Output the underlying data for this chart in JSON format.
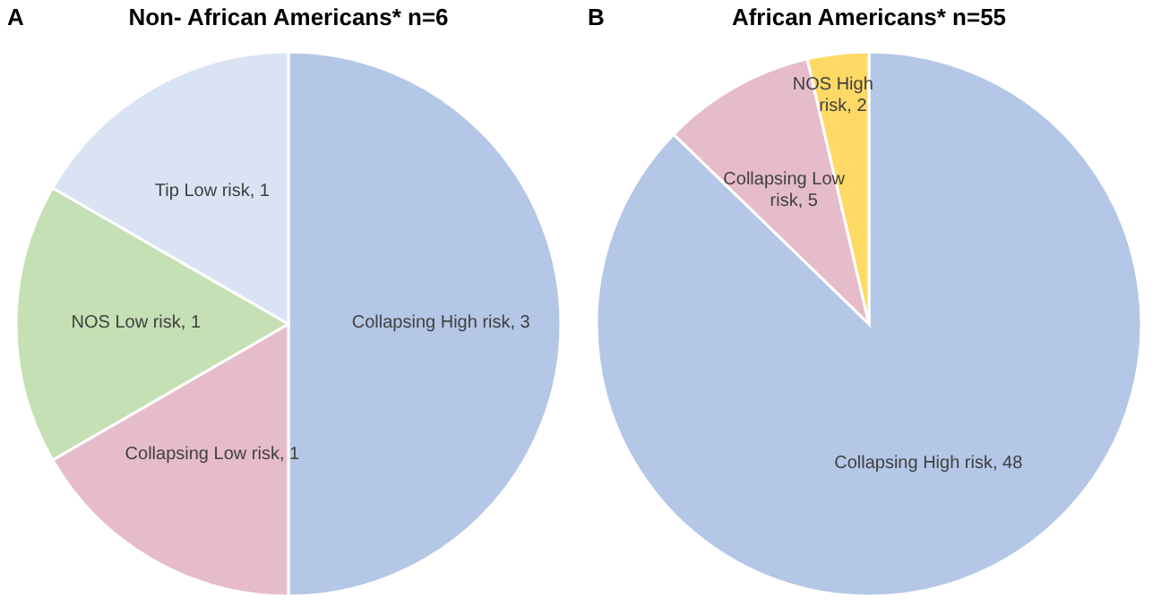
{
  "chart_data": [
    {
      "type": "pie",
      "title": "Non- African Americans* n=6",
      "annotations": [
        "A"
      ],
      "categories": [
        "Collapsing High risk",
        "Collapsing Low risk",
        "NOS Low risk",
        "Tip Low risk"
      ],
      "values": [
        3,
        1,
        1,
        1
      ],
      "colors": [
        "#b4c7e7",
        "#e6bccb",
        "#c5e0b4",
        "#dae3f3"
      ],
      "value_labels": [
        ", 3",
        ", 1",
        ", 1",
        ", 1"
      ]
    },
    {
      "type": "pie",
      "title": "African Americans* n=55",
      "annotations": [
        "B"
      ],
      "categories": [
        "Collapsing High risk",
        "Collapsing Low risk",
        "NOS High risk"
      ],
      "values": [
        48,
        5,
        2
      ],
      "colors": [
        "#b4c7e7",
        "#e6bccb",
        "#ffd966"
      ],
      "value_labels": [
        ", 48",
        ", 5",
        ", 2"
      ]
    }
  ]
}
